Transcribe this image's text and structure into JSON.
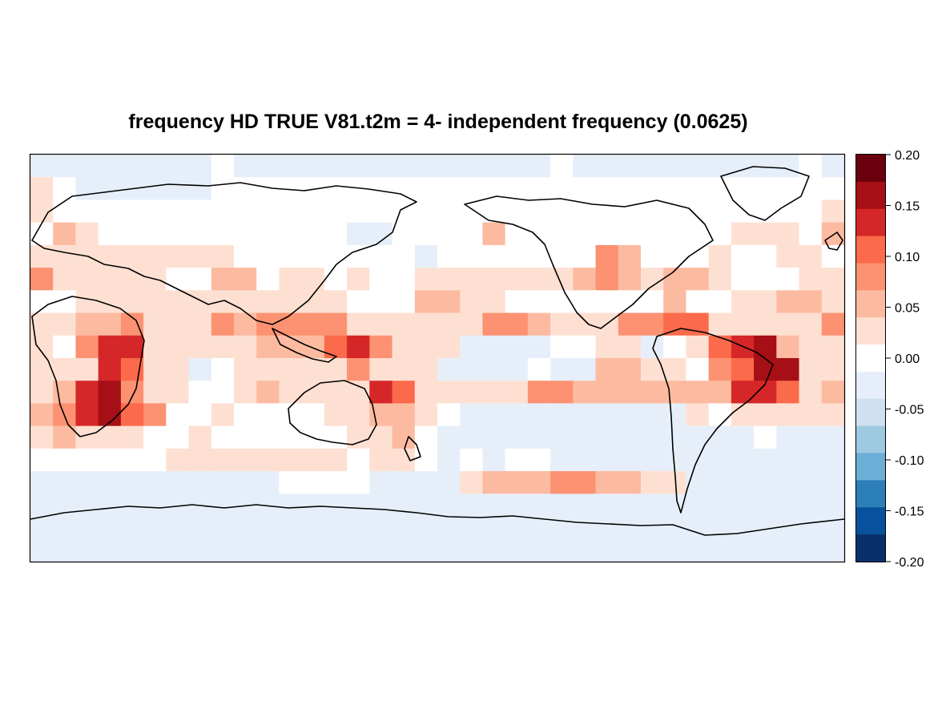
{
  "title": "frequency HD TRUE V81.t2m = 4- independent frequency (0.0625)",
  "colorbar": {
    "ticks": [
      "0.20",
      "0.15",
      "0.10",
      "0.05",
      "0.00",
      "-0.05",
      "-0.10",
      "-0.15",
      "-0.20"
    ],
    "range": [
      -0.2,
      0.2
    ],
    "colors": [
      "#6a000d",
      "#a50f15",
      "#d62728",
      "#fb6a4a",
      "#fc9272",
      "#fcbba1",
      "#fee0d2",
      "#ffffff",
      "#e6eff9",
      "#cfe0f0",
      "#9ecae1",
      "#6baed6",
      "#2c7fb8",
      "#08519c",
      "#08306b"
    ]
  },
  "chart_data": {
    "type": "heatmap",
    "title": "frequency HD TRUE V81.t2m = 4- independent frequency (0.0625)",
    "grid": {
      "columns": 36,
      "rows": 18,
      "note": "global field, each cell ~10 degrees"
    },
    "value_bins": [
      0.2,
      0.175,
      0.15,
      0.125,
      0.1,
      0.075,
      0.05,
      0.025,
      0.0,
      -0.025,
      -0.05,
      -0.075,
      -0.1,
      -0.125,
      -0.15,
      -0.175,
      -0.2
    ],
    "levels": [
      [
        -1,
        -1,
        -1,
        -1,
        -1,
        -1,
        -1,
        -1,
        0,
        -1,
        -1,
        -1,
        -1,
        -1,
        -1,
        -1,
        -1,
        -1,
        -1,
        -1,
        -1,
        -1,
        -1,
        0,
        -1,
        -1,
        -1,
        -1,
        -1,
        -1,
        -1,
        -1,
        -1,
        -1,
        0,
        -1
      ],
      [
        1,
        0,
        -1,
        -1,
        -1,
        -1,
        -1,
        -1,
        0,
        0,
        0,
        0,
        0,
        0,
        0,
        0,
        0,
        0,
        0,
        0,
        0,
        0,
        0,
        0,
        0,
        0,
        0,
        0,
        0,
        0,
        0,
        0,
        0,
        0,
        0,
        0
      ],
      [
        1,
        0,
        0,
        0,
        0,
        0,
        0,
        0,
        0,
        0,
        0,
        0,
        0,
        0,
        0,
        0,
        0,
        0,
        0,
        0,
        0,
        0,
        0,
        0,
        0,
        0,
        0,
        0,
        0,
        0,
        0,
        0,
        0,
        0,
        0,
        1
      ],
      [
        0,
        2,
        1,
        0,
        0,
        0,
        0,
        0,
        0,
        0,
        0,
        0,
        0,
        0,
        -1,
        -1,
        0,
        0,
        0,
        0,
        2,
        0,
        0,
        0,
        0,
        0,
        0,
        0,
        0,
        0,
        0,
        1,
        1,
        1,
        0,
        2
      ],
      [
        1,
        1,
        1,
        1,
        1,
        1,
        1,
        1,
        1,
        0,
        0,
        0,
        0,
        0,
        0,
        0,
        0,
        -1,
        0,
        0,
        0,
        0,
        0,
        0,
        0,
        3,
        2,
        0,
        0,
        0,
        1,
        0,
        0,
        1,
        1,
        0
      ],
      [
        3,
        1,
        1,
        1,
        1,
        1,
        0,
        0,
        2,
        2,
        0,
        1,
        1,
        0,
        1,
        0,
        0,
        1,
        1,
        1,
        1,
        1,
        1,
        1,
        2,
        3,
        2,
        1,
        2,
        2,
        1,
        0,
        0,
        0,
        1,
        1
      ],
      [
        0,
        0,
        1,
        1,
        1,
        1,
        1,
        1,
        1,
        1,
        1,
        1,
        1,
        1,
        0,
        0,
        0,
        2,
        2,
        1,
        1,
        0,
        0,
        0,
        0,
        0,
        0,
        0,
        2,
        0,
        0,
        1,
        1,
        2,
        2,
        1
      ],
      [
        1,
        1,
        2,
        2,
        3,
        1,
        1,
        1,
        3,
        2,
        3,
        3,
        3,
        3,
        1,
        1,
        1,
        1,
        1,
        1,
        3,
        3,
        2,
        1,
        1,
        1,
        3,
        3,
        4,
        4,
        1,
        1,
        1,
        1,
        1,
        3
      ],
      [
        1,
        0,
        3,
        5,
        5,
        1,
        1,
        1,
        1,
        1,
        2,
        2,
        2,
        4,
        5,
        3,
        1,
        1,
        1,
        -1,
        -1,
        -1,
        -1,
        0,
        0,
        1,
        1,
        -1,
        0,
        1,
        4,
        5,
        6,
        2,
        1,
        1
      ],
      [
        1,
        1,
        1,
        5,
        4,
        1,
        1,
        -1,
        0,
        1,
        1,
        1,
        1,
        1,
        3,
        1,
        1,
        1,
        -1,
        -1,
        -1,
        -1,
        0,
        -1,
        -1,
        2,
        2,
        1,
        1,
        0,
        3,
        4,
        6,
        6,
        1,
        1
      ],
      [
        1,
        2,
        5,
        6,
        3,
        1,
        1,
        0,
        0,
        1,
        2,
        1,
        1,
        1,
        1,
        5,
        4,
        1,
        1,
        1,
        1,
        1,
        3,
        3,
        2,
        2,
        2,
        2,
        2,
        2,
        2,
        5,
        5,
        4,
        1,
        2
      ],
      [
        2,
        3,
        5,
        6,
        4,
        3,
        0,
        0,
        1,
        0,
        0,
        0,
        0,
        1,
        1,
        2,
        2,
        1,
        0,
        -1,
        -1,
        -1,
        -1,
        -1,
        -1,
        -1,
        -1,
        -1,
        -1,
        1,
        0,
        1,
        1,
        1,
        1,
        1
      ],
      [
        1,
        2,
        1,
        1,
        1,
        0,
        0,
        1,
        0,
        0,
        0,
        0,
        0,
        0,
        1,
        1,
        2,
        0,
        -1,
        -1,
        -1,
        -1,
        -1,
        -1,
        -1,
        -1,
        -1,
        -1,
        -1,
        -1,
        -1,
        -1,
        0,
        -1,
        -1,
        -1
      ],
      [
        0,
        0,
        0,
        0,
        0,
        0,
        1,
        1,
        1,
        1,
        1,
        1,
        1,
        1,
        0,
        1,
        1,
        0,
        -1,
        0,
        -1,
        0,
        0,
        -1,
        -1,
        -1,
        -1,
        -1,
        -1,
        -1,
        -1,
        -1,
        -1,
        -1,
        -1,
        -1
      ],
      [
        -1,
        -1,
        -1,
        -1,
        -1,
        -1,
        -1,
        -1,
        -1,
        -1,
        -1,
        0,
        0,
        0,
        0,
        -1,
        -1,
        -1,
        -1,
        1,
        2,
        2,
        2,
        3,
        3,
        2,
        2,
        1,
        1,
        -1,
        -1,
        -1,
        -1,
        -1,
        -1,
        -1
      ],
      [
        -1,
        -1,
        -1,
        -1,
        -1,
        -1,
        -1,
        -1,
        -1,
        -1,
        -1,
        -1,
        -1,
        -1,
        -1,
        -1,
        -1,
        -1,
        -1,
        -1,
        -1,
        -1,
        -1,
        -1,
        -1,
        -1,
        -1,
        -1,
        -1,
        -1,
        -1,
        -1,
        -1,
        -1,
        -1,
        -1
      ],
      [
        -1,
        -1,
        -1,
        -1,
        -1,
        -1,
        -1,
        -1,
        -1,
        -1,
        -1,
        -1,
        -1,
        -1,
        -1,
        -1,
        -1,
        -1,
        -1,
        -1,
        -1,
        -1,
        -1,
        -1,
        -1,
        -1,
        -1,
        -1,
        -1,
        -1,
        -1,
        -1,
        -1,
        -1,
        -1,
        -1
      ],
      [
        -1,
        -1,
        -1,
        -1,
        -1,
        -1,
        -1,
        -1,
        -1,
        -1,
        -1,
        -1,
        -1,
        -1,
        -1,
        -1,
        -1,
        -1,
        -1,
        -1,
        -1,
        -1,
        -1,
        -1,
        -1,
        -1,
        -1,
        -1,
        -1,
        -1,
        -1,
        -1,
        -1,
        -1,
        -1,
        -1
      ]
    ]
  }
}
